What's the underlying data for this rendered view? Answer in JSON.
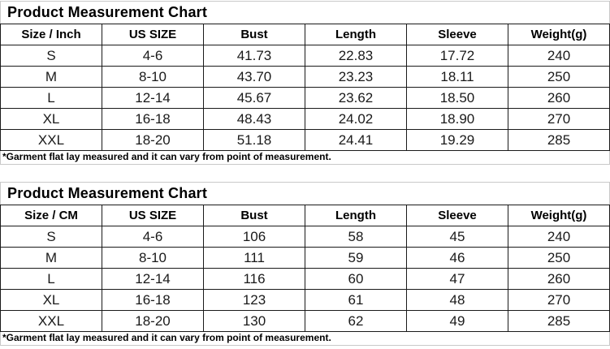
{
  "colors": {
    "background": "#ffffff",
    "cell_border": "#1a1a1a",
    "outer_border": "#c9c9c9",
    "text": "#000000"
  },
  "chart_data": [
    {
      "type": "table",
      "title": "Product Measurement Chart",
      "unit": "Inch",
      "columns": [
        "Size / Inch",
        "US SIZE",
        "Bust",
        "Length",
        "Sleeve",
        "Weight(g)"
      ],
      "rows": [
        [
          "S",
          "4-6",
          "41.73",
          "22.83",
          "17.72",
          "240"
        ],
        [
          "M",
          "8-10",
          "43.70",
          "23.23",
          "18.11",
          "250"
        ],
        [
          "L",
          "12-14",
          "45.67",
          "23.62",
          "18.50",
          "260"
        ],
        [
          "XL",
          "16-18",
          "48.43",
          "24.02",
          "18.90",
          "270"
        ],
        [
          "XXL",
          "18-20",
          "51.18",
          "24.41",
          "19.29",
          "285"
        ]
      ],
      "footnote": "*Garment flat lay measured and it can vary from point of measurement."
    },
    {
      "type": "table",
      "title": "Product Measurement Chart",
      "unit": "CM",
      "columns": [
        "Size / CM",
        "US SIZE",
        "Bust",
        "Length",
        "Sleeve",
        "Weight(g)"
      ],
      "rows": [
        [
          "S",
          "4-6",
          "106",
          "58",
          "45",
          "240"
        ],
        [
          "M",
          "8-10",
          "111",
          "59",
          "46",
          "250"
        ],
        [
          "L",
          "12-14",
          "116",
          "60",
          "47",
          "260"
        ],
        [
          "XL",
          "16-18",
          "123",
          "61",
          "48",
          "270"
        ],
        [
          "XXL",
          "18-20",
          "130",
          "62",
          "49",
          "285"
        ]
      ],
      "footnote": "*Garment flat lay measured and it can vary from point of measurement."
    }
  ]
}
